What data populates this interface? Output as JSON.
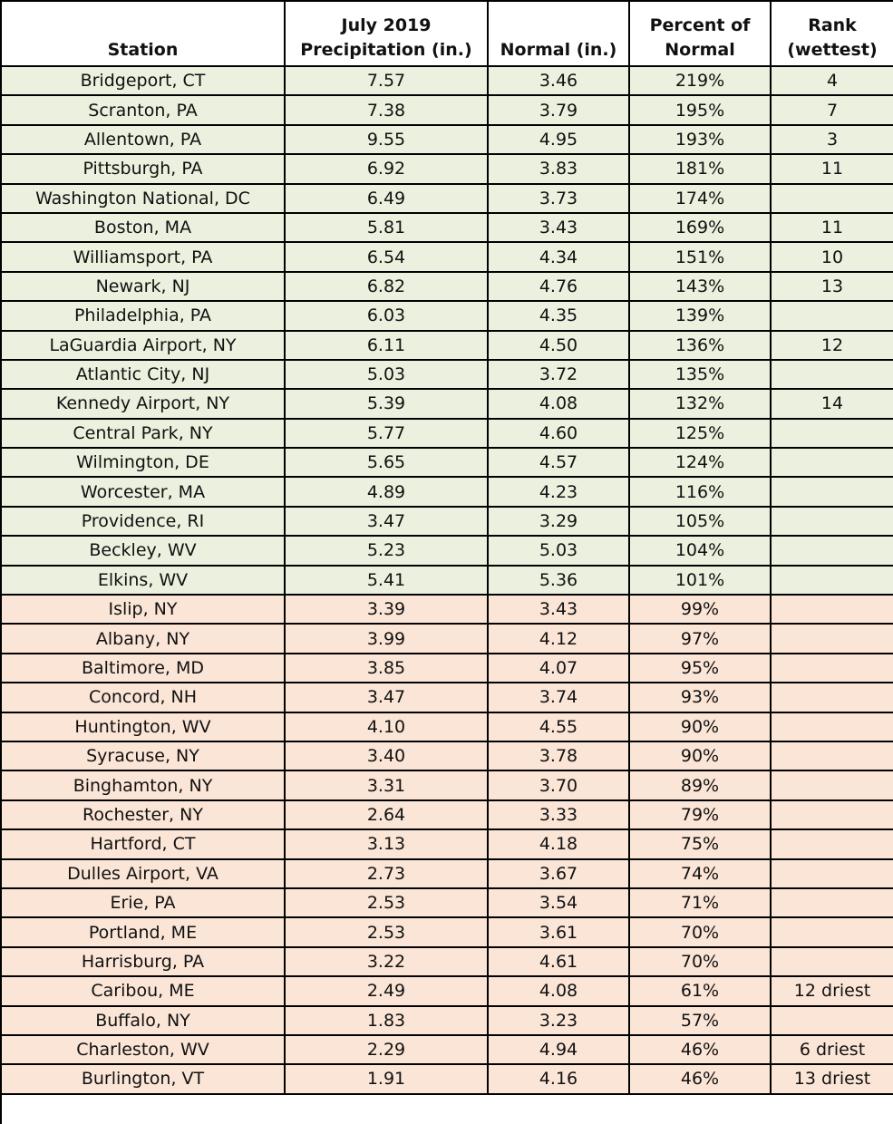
{
  "table": {
    "header": [
      "Station",
      "July 2019 Precipitation (in.)",
      "Normal (in.)",
      "Percent of Normal",
      "Rank (wettest)"
    ],
    "rows": [
      [
        "Bridgeport, CT",
        "7.57",
        "3.46",
        "219%",
        "4"
      ],
      [
        "Scranton, PA",
        "7.38",
        "3.79",
        "195%",
        "7"
      ],
      [
        "Allentown, PA",
        "9.55",
        "4.95",
        "193%",
        "3"
      ],
      [
        "Pittsburgh, PA",
        "6.92",
        "3.83",
        "181%",
        "11"
      ],
      [
        "Washington National, DC",
        "6.49",
        "3.73",
        "174%",
        null
      ],
      [
        "Boston, MA",
        "5.81",
        "3.43",
        "169%",
        "11"
      ],
      [
        "Williamsport, PA",
        "6.54",
        "4.34",
        "151%",
        "10"
      ],
      [
        "Newark, NJ",
        "6.82",
        "4.76",
        "143%",
        "13"
      ],
      [
        "Philadelphia, PA",
        "6.03",
        "4.35",
        "139%",
        null
      ],
      [
        "LaGuardia Airport, NY",
        "6.11",
        "4.50",
        "136%",
        "12"
      ],
      [
        "Atlantic City, NJ",
        "5.03",
        "3.72",
        "135%",
        null
      ],
      [
        "Kennedy Airport, NY",
        "5.39",
        "4.08",
        "132%",
        "14"
      ],
      [
        "Central Park, NY",
        "5.77",
        "4.60",
        "125%",
        null
      ],
      [
        "Wilmington, DE",
        "5.65",
        "4.57",
        "124%",
        null
      ],
      [
        "Worcester, MA",
        "4.89",
        "4.23",
        "116%",
        null
      ],
      [
        "Providence, RI",
        "3.47",
        "3.29",
        "105%",
        null
      ],
      [
        "Beckley, WV",
        "5.23",
        "5.03",
        "104%",
        null
      ],
      [
        "Elkins, WV",
        "5.41",
        "5.36",
        "101%",
        null
      ],
      [
        "Islip, NY",
        "3.39",
        "3.43",
        "99%",
        null
      ],
      [
        "Albany, NY",
        "3.99",
        "4.12",
        "97%",
        null
      ],
      [
        "Baltimore, MD",
        "3.85",
        "4.07",
        "95%",
        null
      ],
      [
        "Concord, NH",
        "3.47",
        "3.74",
        "93%",
        null
      ],
      [
        "Huntington, WV",
        "4.10",
        "4.55",
        "90%",
        null
      ],
      [
        "Syracuse, NY",
        "3.40",
        "3.78",
        "90%",
        null
      ],
      [
        "Binghamton, NY",
        "3.31",
        "3.70",
        "89%",
        null
      ],
      [
        "Rochester, NY",
        "2.64",
        "3.33",
        "79%",
        null
      ],
      [
        "Hartford, CT",
        "3.13",
        "4.18",
        "75%",
        null
      ],
      [
        "Dulles Airport, VA",
        "2.73",
        "3.67",
        "74%",
        null
      ],
      [
        "Erie, PA",
        "2.53",
        "3.54",
        "71%",
        null
      ],
      [
        "Portland, ME",
        "2.53",
        "3.61",
        "70%",
        null
      ],
      [
        "Harrisburg, PA",
        "3.22",
        "4.61",
        "70%",
        null
      ],
      [
        "Caribou, ME",
        "2.49",
        "4.08",
        "61%",
        "12 driest"
      ],
      [
        "Buffalo, NY",
        "1.83",
        "3.23",
        "57%",
        null
      ],
      [
        "Charleston, WV",
        "2.29",
        "4.94",
        "46%",
        "6 driest"
      ],
      [
        "Burlington, VT",
        "1.91",
        "4.16",
        "46%",
        "13 driest"
      ]
    ]
  }
}
